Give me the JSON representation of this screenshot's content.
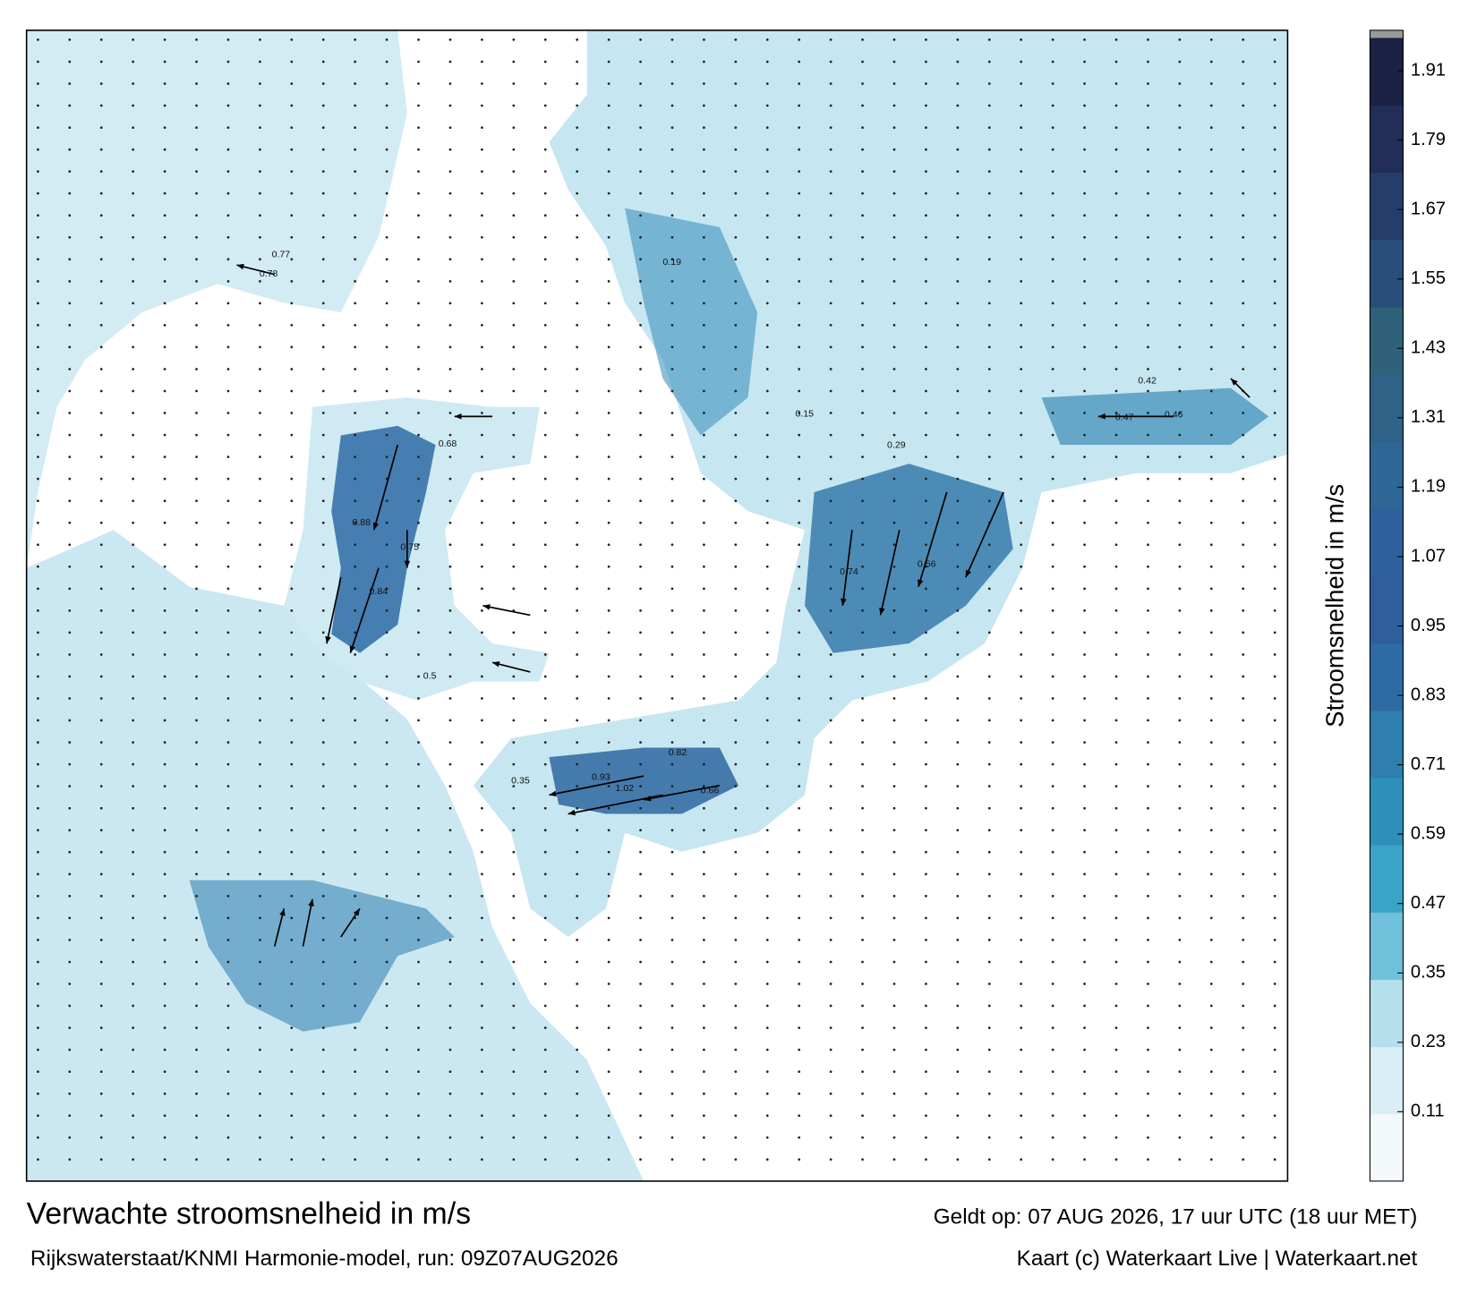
{
  "header": {
    "title": "Verwachte stroomsnelheid in m/s",
    "subtitle": "Rijkswaterstaat/KNMI Harmonie-model, run: 09Z07AUG2026",
    "valid": "Geldt op: 07 AUG 2026, 17 uur UTC (18 uur MET)",
    "credit": "Kaart (c) Waterkaart Live | Waterkaart.net"
  },
  "colorbar": {
    "label": "Stroomsnelheid in m/s",
    "lim": [
      -0.01,
      1.98
    ],
    "ticks": [
      0.11,
      0.23,
      0.35,
      0.47,
      0.59,
      0.71,
      0.83,
      0.95,
      1.07,
      1.19,
      1.31,
      1.43,
      1.55,
      1.67,
      1.79,
      1.91
    ],
    "colors": [
      "#f3f9fb",
      "#d9eef5",
      "#b5dfec",
      "#6fc0da",
      "#3aa3c8",
      "#2e8fb8",
      "#2e7eae",
      "#2e6aa3",
      "#2e5f9c",
      "#2e609e",
      "#2e6696",
      "#2e6286",
      "#2f6178",
      "#2a4e7a",
      "#263d6a",
      "#222d58",
      "#1c2243"
    ]
  },
  "map": {
    "speed_labels": [
      1.02,
      0.93,
      0.84,
      0.88,
      0.78,
      0.77,
      0.75,
      0.82,
      0.66,
      0.68,
      0.74,
      0.56,
      0.46,
      0.47,
      0.42,
      0.5,
      0.35,
      0.29,
      0.19,
      0.15
    ]
  }
}
